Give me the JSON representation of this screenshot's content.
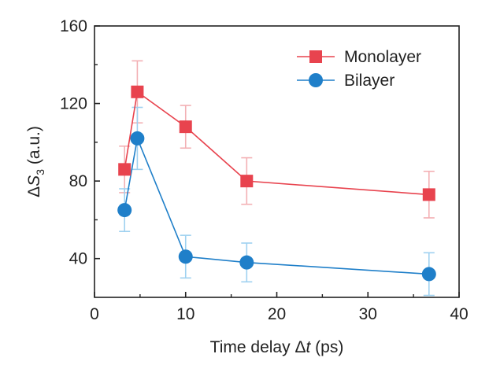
{
  "chart_data": {
    "type": "line",
    "xlabel_parts": [
      "Time delay ",
      "Δ",
      "t",
      " (ps)"
    ],
    "ylabel_parts": [
      "Δ",
      "S",
      "3",
      " (a.u.)"
    ],
    "xlim": [
      0,
      40
    ],
    "ylim": [
      20,
      160
    ],
    "x_ticks": [
      0,
      10,
      20,
      30,
      40
    ],
    "y_ticks": [
      40,
      80,
      120,
      160
    ],
    "grid": false,
    "legend_position": "top-right",
    "series": [
      {
        "name": "Monolayer",
        "marker": "square",
        "color": "#e8434e",
        "error_color": "#f3b0b4",
        "x": [
          3.3,
          4.7,
          10.0,
          16.7,
          36.7
        ],
        "y": [
          86,
          126,
          108,
          80,
          73
        ],
        "error": [
          12,
          16,
          11,
          12,
          12
        ]
      },
      {
        "name": "Bilayer",
        "marker": "circle",
        "color": "#1f7fc9",
        "error_color": "#9fd1f0",
        "x": [
          3.3,
          4.7,
          10.0,
          16.7,
          36.7
        ],
        "y": [
          65,
          102,
          41,
          38,
          32
        ],
        "error": [
          11,
          16,
          11,
          10,
          11
        ]
      }
    ]
  }
}
